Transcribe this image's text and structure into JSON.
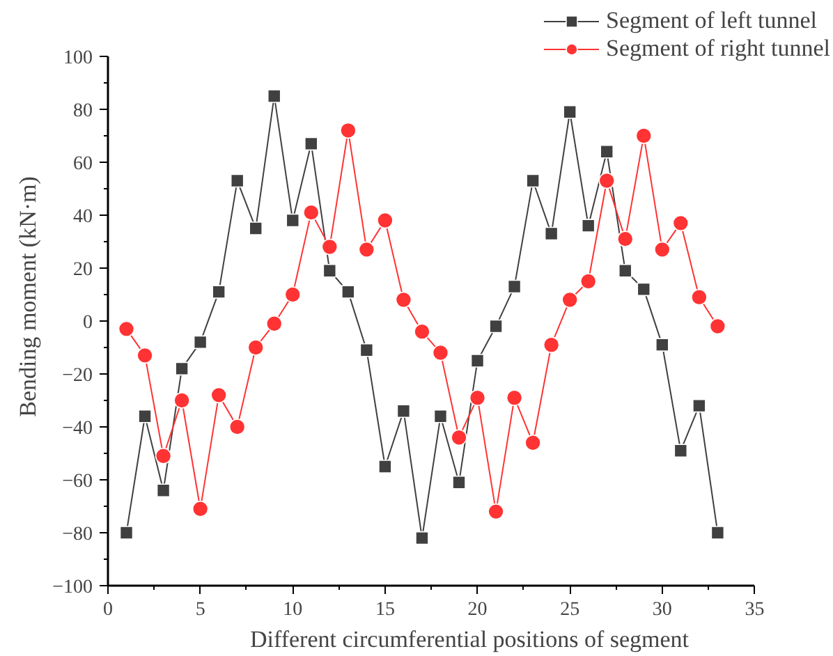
{
  "chart_data": {
    "type": "line",
    "xlabel": "Different circumferential positions of segment",
    "ylabel": "Bending moment (kN·m)",
    "x": [
      1,
      2,
      3,
      4,
      5,
      6,
      7,
      8,
      9,
      10,
      11,
      12,
      13,
      14,
      15,
      16,
      17,
      18,
      19,
      20,
      21,
      22,
      23,
      24,
      25,
      26,
      27,
      28,
      29,
      30,
      31,
      32,
      33
    ],
    "series": [
      {
        "name": "Segment of left tunnel",
        "color": "#404040",
        "marker": "square",
        "values": [
          -80,
          -36,
          -64,
          -18,
          -8,
          11,
          53,
          35,
          85,
          38,
          67,
          19,
          11,
          -11,
          -55,
          -34,
          -82,
          -36,
          -61,
          -15,
          -2,
          13,
          53,
          33,
          79,
          36,
          64,
          19,
          12,
          -9,
          -49,
          -32,
          -80
        ]
      },
      {
        "name": "Segment of right tunnel",
        "color": "#ff3333",
        "marker": "circle",
        "values": [
          -3,
          -13,
          -51,
          -30,
          -71,
          -28,
          -40,
          -10,
          -1,
          10,
          41,
          28,
          72,
          27,
          38,
          8,
          -4,
          -12,
          -44,
          -29,
          -72,
          -29,
          -46,
          -9,
          8,
          15,
          53,
          31,
          70,
          27,
          37,
          9,
          -2
        ]
      }
    ],
    "xlim": [
      0,
      35
    ],
    "xticks": [
      0,
      5,
      10,
      15,
      20,
      25,
      30,
      35
    ],
    "ylim": [
      -100,
      100
    ],
    "yticks": [
      -100,
      -80,
      -60,
      -40,
      -20,
      0,
      20,
      40,
      60,
      80,
      100
    ],
    "grid": false,
    "legend": "top right",
    "line_style": "solid"
  }
}
